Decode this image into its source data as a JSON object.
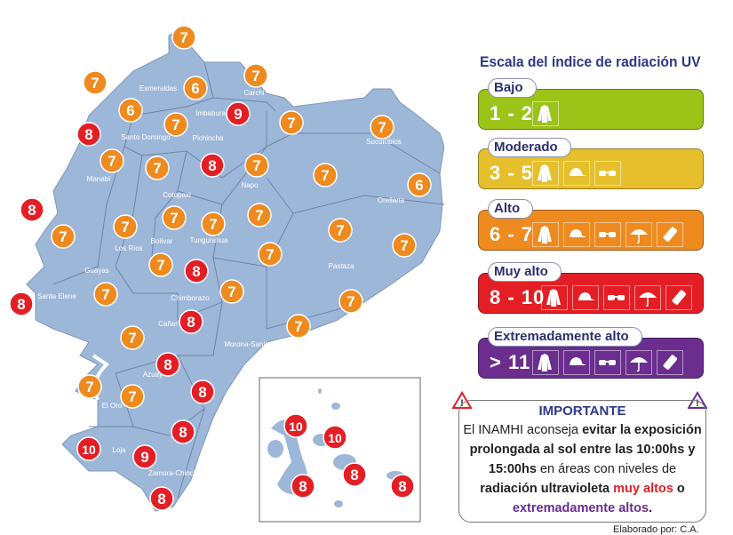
{
  "title": "Escala del índice de radiación UV",
  "colors": {
    "bajo": "#9bc318",
    "moderado": "#e5c02c",
    "alto": "#ee8a1e",
    "muy_alto": "#e31e24",
    "extremo": "#6b2d8e",
    "land": "#9db7d9",
    "title": "#2e3a87"
  },
  "levels": [
    {
      "name": "Bajo",
      "range": "1 - 2",
      "color": "#9bc318",
      "icons": [
        "shirt-icon"
      ]
    },
    {
      "name": "Moderado",
      "range": "3 - 5",
      "color": "#e5c02c",
      "icons": [
        "shirt-icon",
        "cap-icon",
        "sunglasses-icon"
      ]
    },
    {
      "name": "Alto",
      "range": "6 - 7",
      "color": "#ee8a1e",
      "icons": [
        "shirt-icon",
        "cap-icon",
        "sunglasses-icon",
        "umbrella-icon",
        "sunscreen-icon"
      ]
    },
    {
      "name": "Muy alto",
      "range": "8 - 10",
      "color": "#e31e24",
      "icons": [
        "shirt-icon",
        "cap-icon",
        "sunglasses-icon",
        "umbrella-icon",
        "sunscreen-icon"
      ]
    },
    {
      "name": "Extremadamente alto",
      "range": "> 11",
      "color": "#6b2d8e",
      "icons": [
        "shirt-icon",
        "cap-icon",
        "sunglasses-icon",
        "umbrella-icon",
        "sunscreen-icon"
      ]
    }
  ],
  "important": {
    "heading": "IMPORTANTE",
    "t1": "El INAMHI aconseja ",
    "b1": "evitar la exposición prolongada al sol entre las 10:00hs y 15:00hs",
    "t2": " en áreas con niveles de ",
    "b2": "radiación ultravioleta ",
    "red": "muy altos",
    "t3": " o ",
    "purple": "extremadamente altos",
    "end": "."
  },
  "credit": "Elaborado por: C.A.",
  "provinces": [
    "Esmeraldas",
    "Carchi",
    "Imbabura",
    "Santo Domingo",
    "Pichincha",
    "Sucumbios",
    "Manabí",
    "Napo",
    "Cotopaxi",
    "Orellana",
    "Bolívar",
    "Los Ríos",
    "Tungurahua",
    "Guayas",
    "Pastaza",
    "Santa Elene",
    "Chimborazo",
    "Cañar",
    "Morona-Santiago",
    "Azuay",
    "El Oro",
    "Loja",
    "Zamora-Chinchipe"
  ],
  "uv_values": [
    7,
    7,
    6,
    7,
    6,
    9,
    7,
    7,
    7,
    8,
    7,
    7,
    8,
    7,
    7,
    6,
    8,
    7,
    7,
    7,
    7,
    7,
    7,
    7,
    7,
    8,
    7,
    7,
    8,
    7,
    8,
    7,
    7,
    7,
    8,
    8,
    7,
    7,
    8,
    10,
    9,
    8
  ],
  "galapagos_uv_values": [
    10,
    10,
    8,
    8,
    8
  ]
}
